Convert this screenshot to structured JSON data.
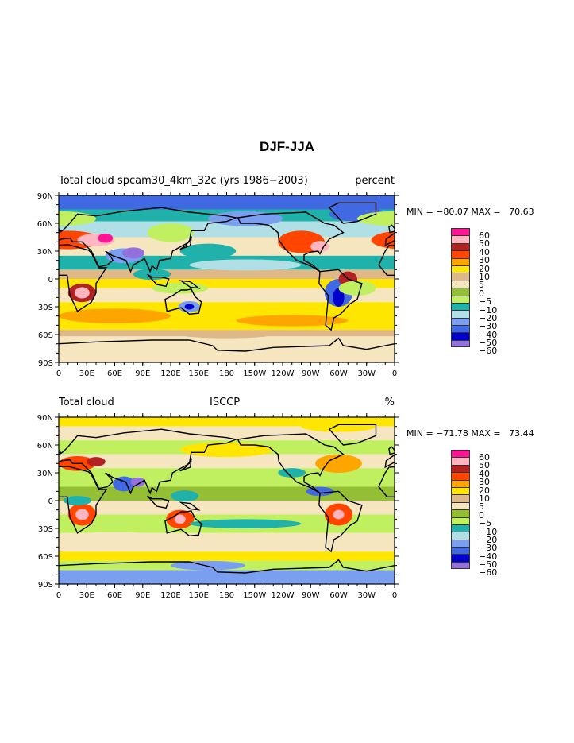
{
  "title": "DJF-JJA",
  "colorbar": {
    "labels": [
      "60",
      "50",
      "40",
      "30",
      "20",
      "10",
      "5",
      "0",
      "−5",
      "−10",
      "−20",
      "−30",
      "−40",
      "−50",
      "−60"
    ],
    "colors": [
      "#ff1493",
      "#ffb6c1",
      "#b22222",
      "#ff4500",
      "#ffa500",
      "#ffe600",
      "#deb887",
      "#f5e6c0",
      "#94be33",
      "#c0f060",
      "#20b2aa",
      "#b0e0e6",
      "#7b9ff0",
      "#4169e1",
      "#0000cd",
      "#9370db"
    ]
  },
  "axes": {
    "lat_labels": [
      "90N",
      "60N",
      "30N",
      "0",
      "30S",
      "60S",
      "90S"
    ],
    "lon_labels": [
      "0",
      "30E",
      "60E",
      "90E",
      "120E",
      "150E",
      "180",
      "150W",
      "120W",
      "90W",
      "60W",
      "30W",
      "0"
    ]
  },
  "panels": [
    {
      "left": "Total cloud",
      "center": "spcam30_4km_32c (yrs 1986−2003)",
      "right": "percent",
      "minmax": "MIN = −80.07 MAX =   70.63"
    },
    {
      "left": "Total cloud",
      "center": "ISCCP",
      "right": "%",
      "minmax": "MIN = −71.78 MAX =   73.44"
    }
  ],
  "chart_data": {
    "type": "heatmap",
    "title": "DJF-JJA",
    "maps": [
      {
        "variable": "Total cloud",
        "source": "spcam30_4km_32c (yrs 1986−2003)",
        "units": "percent",
        "min": -80.07,
        "max": 70.63
      },
      {
        "variable": "Total cloud",
        "source": "ISCCP",
        "units": "%",
        "min": -71.78,
        "max": 73.44
      }
    ],
    "levels": [
      -60,
      -50,
      -40,
      -30,
      -20,
      -10,
      -5,
      0,
      5,
      10,
      20,
      30,
      40,
      50,
      60
    ],
    "xlim": [
      0,
      360
    ],
    "ylim": [
      -90,
      90
    ]
  }
}
